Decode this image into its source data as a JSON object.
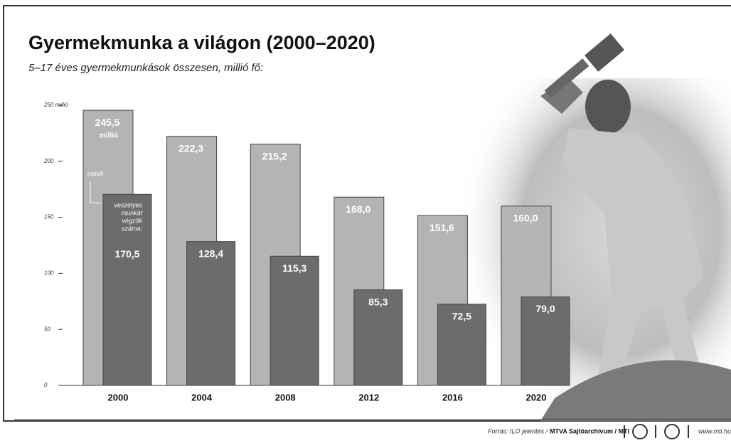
{
  "chart_data": {
    "type": "bar",
    "title": "Gyermekmunka a világon (2000–2020)",
    "subtitle": "5–17 éves gyermekmunkások összesen, millió fő:",
    "categories": [
      "2000",
      "2004",
      "2008",
      "2012",
      "2016",
      "2020"
    ],
    "series": [
      {
        "color": "#b4b4b4",
        "values": [
          245.5,
          222.3,
          215.2,
          168.0,
          151.6,
          160.0
        ],
        "value_labels": [
          "245,5",
          "222,3",
          "215,2",
          "168,0",
          "151,6",
          "160,0"
        ]
      },
      {
        "color": "#6c6c6c",
        "values": [
          170.5,
          128.4,
          115.3,
          85.3,
          72.5,
          79.0
        ],
        "value_labels": [
          "170,5",
          "128,4",
          "115,3",
          "85,3",
          "72,5",
          "79,0"
        ]
      }
    ],
    "ylim": [
      0,
      250
    ],
    "yticks": [
      0,
      50,
      100,
      150,
      200,
      {
        "value": 250,
        "label": "250 millió"
      }
    ],
    "annotations": {
      "unit": "millió",
      "of_which": "ebből:",
      "hazardous": [
        "veszélyes",
        "munkát",
        "végzők",
        "száma:"
      ]
    },
    "source": {
      "prefix": "Forrás: ILO jelentés /",
      "agency": "MTVA Sajtóarchívum / MTI",
      "url": "www.mti.hu"
    }
  }
}
